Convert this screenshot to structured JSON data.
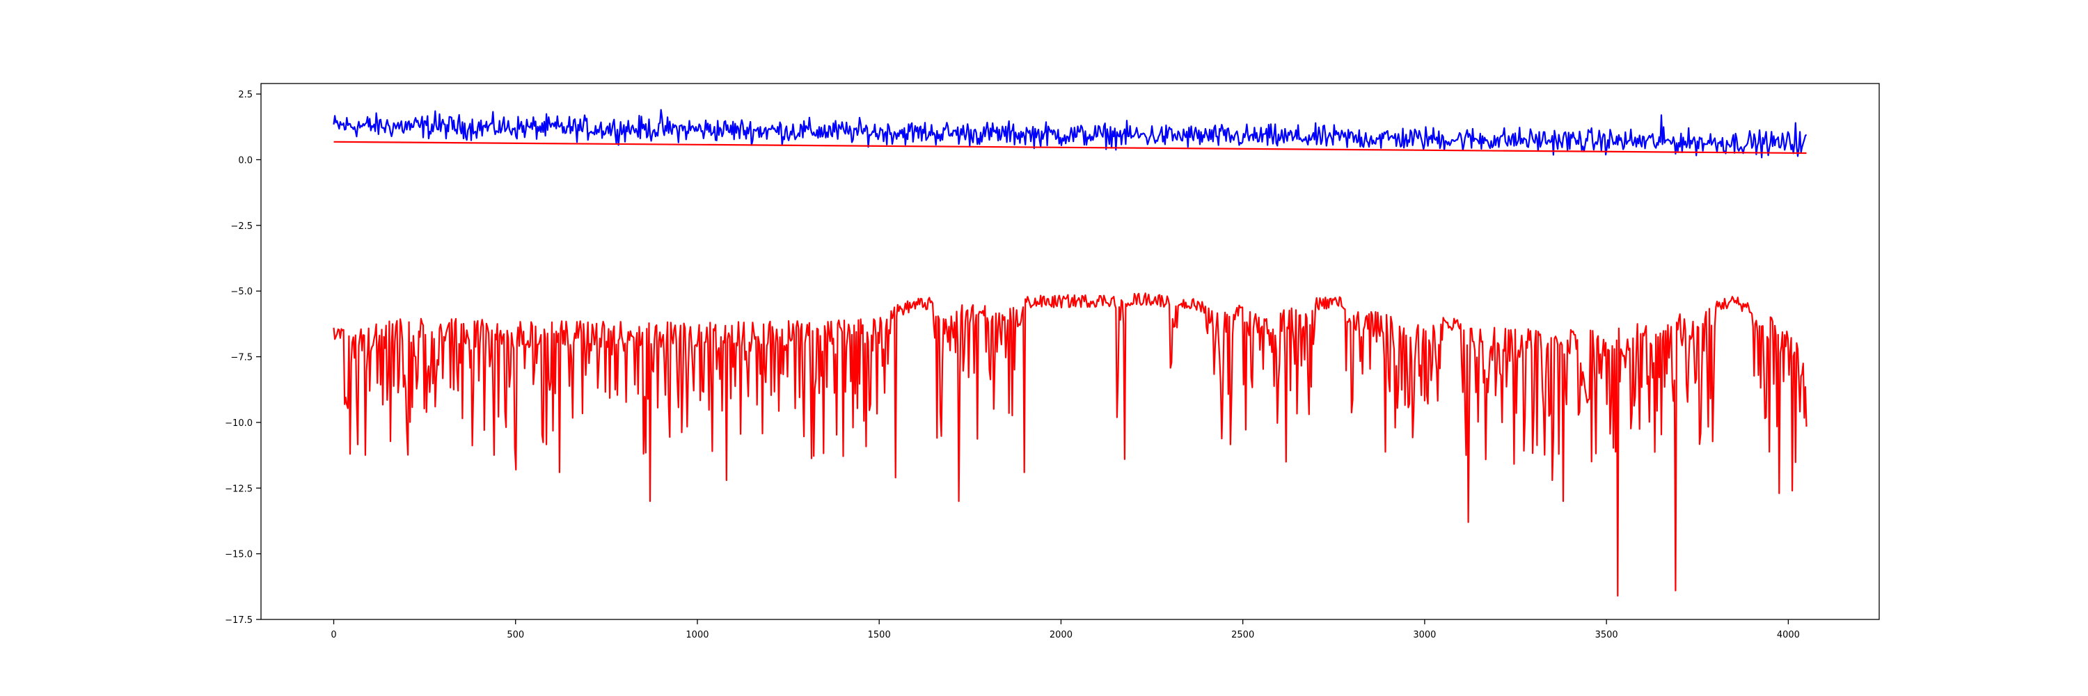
{
  "chart_data": {
    "type": "line",
    "title": "",
    "xlabel": "",
    "ylabel": "",
    "xlim": [
      -200,
      4250
    ],
    "ylim": [
      -17.5,
      2.9
    ],
    "x_ticks": [
      0,
      500,
      1000,
      1500,
      2000,
      2500,
      3000,
      3500,
      4000
    ],
    "x_tick_labels": [
      "0",
      "500",
      "1000",
      "1500",
      "2000",
      "2500",
      "3000",
      "3500",
      "4000"
    ],
    "y_ticks": [
      2.5,
      0.0,
      -2.5,
      -5.0,
      -7.5,
      -10.0,
      -12.5,
      -15.0,
      -17.5
    ],
    "y_tick_labels": [
      "2.5",
      "0.0",
      "−2.5",
      "−5.0",
      "−7.5",
      "−10.0",
      "−12.5",
      "−15.0",
      "−17.5"
    ],
    "grid": false,
    "legend": "none",
    "series": [
      {
        "color": "#0000ff",
        "style": "noisy",
        "x_range": [
          0,
          4050
        ],
        "trend": [
          [
            0,
            1.3
          ],
          [
            1000,
            1.15
          ],
          [
            2000,
            0.95
          ],
          [
            3000,
            0.8
          ],
          [
            4050,
            0.62
          ]
        ],
        "noise_amplitude": 0.22,
        "peaks": [
          [
            280,
            1.85
          ],
          [
            900,
            1.9
          ],
          [
            3650,
            1.7
          ],
          [
            4020,
            1.4
          ]
        ]
      },
      {
        "color": "#ff0000",
        "style": "smooth",
        "x": [
          0,
          4050
        ],
        "y": [
          0.68,
          0.25
        ]
      },
      {
        "color": "#ff0000",
        "style": "dips",
        "x_range": [
          0,
          4050
        ],
        "baseline": [
          [
            0,
            -6.6
          ],
          [
            200,
            -6.0
          ],
          [
            1000,
            -6.2
          ],
          [
            1500,
            -6.0
          ],
          [
            1600,
            -5.5
          ],
          [
            2000,
            -5.4
          ],
          [
            2250,
            -5.3
          ],
          [
            2500,
            -5.8
          ],
          [
            2750,
            -5.4
          ],
          [
            3000,
            -6.2
          ],
          [
            3500,
            -6.5
          ],
          [
            3850,
            -5.4
          ],
          [
            4000,
            -6.2
          ],
          [
            4050,
            -7.8
          ]
        ],
        "active_regions": [
          [
            30,
            1530
          ],
          [
            1650,
            1900
          ],
          [
            2150,
            2180
          ],
          [
            2300,
            2320
          ],
          [
            2400,
            2480
          ],
          [
            2500,
            2700
          ],
          [
            2780,
            3050
          ],
          [
            3100,
            3800
          ],
          [
            3900,
            4050
          ]
        ],
        "deep_dips": [
          [
            45,
            -11.2
          ],
          [
            500,
            -11.8
          ],
          [
            620,
            -11.9
          ],
          [
            870,
            -13.0
          ],
          [
            1080,
            -12.2
          ],
          [
            1545,
            -12.1
          ],
          [
            1720,
            -13.0
          ],
          [
            1900,
            -11.9
          ],
          [
            2175,
            -11.4
          ],
          [
            2620,
            -11.5
          ],
          [
            2920,
            -10.2
          ],
          [
            3120,
            -13.8
          ],
          [
            3350,
            -12.2
          ],
          [
            3380,
            -13.0
          ],
          [
            3530,
            -16.6
          ],
          [
            3690,
            -16.4
          ],
          [
            3975,
            -12.7
          ],
          [
            4010,
            -12.6
          ]
        ]
      }
    ]
  }
}
